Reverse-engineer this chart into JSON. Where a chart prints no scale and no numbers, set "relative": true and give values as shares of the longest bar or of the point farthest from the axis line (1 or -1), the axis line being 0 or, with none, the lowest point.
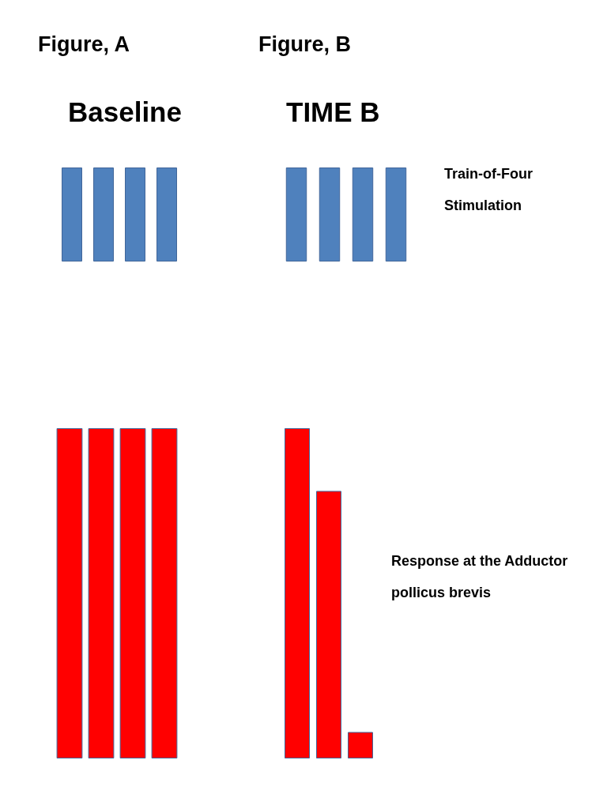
{
  "chart_data": [
    {
      "type": "bar",
      "title": "Figure, A",
      "subtitle": "Baseline",
      "relative": true,
      "categories": [
        null,
        null,
        null,
        null
      ],
      "values": [
        1,
        1,
        1,
        1
      ],
      "color": "#4f81bd"
    },
    {
      "type": "bar",
      "title": "Figure, B",
      "subtitle": "TIME B",
      "relative": true,
      "categories": [
        null,
        null,
        null,
        null
      ],
      "values": [
        1,
        1,
        1,
        1
      ],
      "color": "#4f81bd",
      "annotations": [
        "Train-of-Four Stimulation"
      ]
    },
    {
      "type": "bar",
      "relative": true,
      "categories": [
        null,
        null,
        null,
        null
      ],
      "values": [
        1,
        1,
        1,
        1
      ],
      "color": "#ff0000"
    },
    {
      "type": "bar",
      "relative": true,
      "categories": [
        null,
        null,
        null,
        null
      ],
      "values": [
        1,
        0.81,
        0.08,
        null
      ],
      "color": "#ff0000",
      "annotations": [
        "Response at the Adductor pollicus brevis"
      ]
    }
  ]
}
